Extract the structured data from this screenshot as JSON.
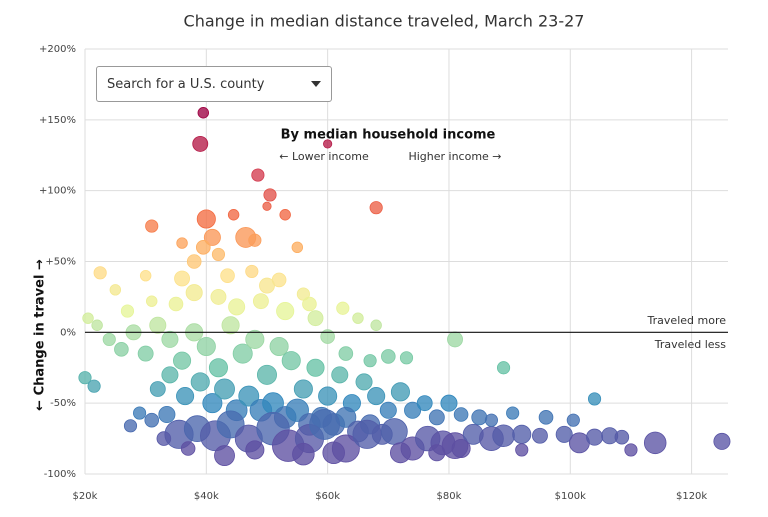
{
  "chart_data": {
    "type": "scatter",
    "title": "Change in median distance traveled, March 23-27",
    "search_placeholder": "Search for a U.S. county",
    "y_label": "← Change in travel →",
    "annotations": {
      "heading": "By median household income",
      "lower": "← Lower income",
      "higher": "Higher income →",
      "more": "Traveled more",
      "less": "Traveled less"
    },
    "xlim": [
      20000,
      126000
    ],
    "xticks": [
      {
        "value": 20000,
        "label": "$20k"
      },
      {
        "value": 40000,
        "label": "$40k"
      },
      {
        "value": 60000,
        "label": "$60k"
      },
      {
        "value": 80000,
        "label": "$80k"
      },
      {
        "value": 100000,
        "label": "$100k"
      },
      {
        "value": 120000,
        "label": "$120k"
      }
    ],
    "ylim": [
      -100,
      200
    ],
    "yticks": [
      {
        "value": -100,
        "label": "-100%"
      },
      {
        "value": -50,
        "label": "-50%"
      },
      {
        "value": 0,
        "label": "0%"
      },
      {
        "value": 50,
        "label": "+50%"
      },
      {
        "value": 100,
        "label": "+100%"
      },
      {
        "value": 150,
        "label": "+150%"
      },
      {
        "value": 200,
        "label": "+200%"
      }
    ],
    "grid": true,
    "colormap": {
      "values": [
        -80,
        -50,
        -25,
        0,
        15,
        40,
        60,
        80,
        110,
        150
      ],
      "colors": [
        "#5e4fa2",
        "#3288bd",
        "#66c2a5",
        "#abdda4",
        "#e6f598",
        "#fee08b",
        "#fdae61",
        "#f46d43",
        "#d53e4f",
        "#9e0142"
      ]
    },
    "x": [
      39500,
      39000,
      48500,
      50500,
      60000,
      68000,
      40000,
      46500,
      41000,
      39500,
      36000,
      31000,
      44500,
      50000,
      53000,
      38000,
      42000,
      48000,
      22500,
      25000,
      30000,
      36000,
      43500,
      47500,
      52000,
      55000,
      50000,
      56000,
      57000,
      62500,
      65000,
      68000,
      20500,
      22000,
      27000,
      31000,
      35000,
      38000,
      42000,
      45000,
      49000,
      53000,
      58000,
      60000,
      63000,
      67000,
      70000,
      73000,
      81000,
      89000,
      104000,
      20000,
      21500,
      24000,
      26000,
      28000,
      30000,
      32000,
      34000,
      36000,
      38000,
      40000,
      42000,
      44000,
      46000,
      48000,
      50000,
      52000,
      54000,
      56000,
      58000,
      60000,
      62000,
      64000,
      66000,
      68000,
      70000,
      72000,
      74000,
      76000,
      78000,
      80000,
      82000,
      85000,
      32000,
      34000,
      36500,
      39000,
      41000,
      43000,
      45000,
      47000,
      49000,
      51000,
      53000,
      55000,
      57000,
      59000,
      61000,
      63000,
      65000,
      67000,
      69000,
      27500,
      29000,
      31000,
      33500,
      35500,
      38500,
      41500,
      44000,
      47000,
      51000,
      53500,
      57000,
      59500,
      63000,
      66500,
      71000,
      74000,
      76500,
      79000,
      81000,
      84000,
      87000,
      89000,
      92000,
      95000,
      99000,
      101500,
      104000,
      106500,
      108500,
      114000,
      125000,
      87000,
      90500,
      96000,
      100500,
      43000,
      48000,
      56000,
      61000,
      72000,
      78000,
      82000,
      92000,
      110000,
      37000,
      33000
    ],
    "values": [
      155,
      133,
      111,
      97,
      133,
      88,
      80,
      67,
      67,
      60,
      63,
      75,
      83,
      89,
      83,
      50,
      55,
      65,
      42,
      30,
      40,
      38,
      40,
      43,
      37,
      60,
      33,
      27,
      20,
      17,
      10,
      5,
      10,
      5,
      15,
      22,
      20,
      28,
      25,
      18,
      22,
      15,
      10,
      -3,
      -15,
      -20,
      -17,
      -18,
      -5,
      -25,
      -47,
      -32,
      -38,
      -5,
      -12,
      0,
      -15,
      5,
      -5,
      -20,
      0,
      -10,
      -25,
      5,
      -15,
      -5,
      -30,
      -10,
      -20,
      -40,
      -25,
      -45,
      -30,
      -50,
      -35,
      -45,
      -55,
      -42,
      -55,
      -50,
      -60,
      -50,
      -58,
      -60,
      -40,
      -30,
      -45,
      -35,
      -50,
      -40,
      -55,
      -45,
      -55,
      -50,
      -60,
      -55,
      -65,
      -60,
      -65,
      -60,
      -70,
      -65,
      -72,
      -66,
      -57,
      -62,
      -58,
      -72,
      -68,
      -73,
      -65,
      -75,
      -68,
      -80,
      -75,
      -65,
      -82,
      -72,
      -70,
      -82,
      -75,
      -78,
      -80,
      -72,
      -75,
      -73,
      -72,
      -73,
      -72,
      -78,
      -74,
      -73,
      -74,
      -78,
      -77,
      -62,
      -57,
      -60,
      -62,
      -87,
      -83,
      -86,
      -85,
      -85,
      -85,
      -82,
      -83,
      -83,
      -82,
      -75
    ],
    "sizes": [
      2,
      5,
      3,
      3,
      1,
      3,
      8,
      10,
      6,
      4,
      2,
      3,
      2,
      1,
      2,
      4,
      3,
      3,
      3,
      2,
      2,
      5,
      4,
      3,
      4,
      2,
      5,
      3,
      4,
      3,
      2,
      2,
      2,
      2,
      3,
      2,
      4,
      6,
      5,
      6,
      5,
      7,
      5,
      4,
      4,
      3,
      4,
      3,
      5,
      3,
      3,
      3,
      3,
      3,
      4,
      5,
      5,
      6,
      6,
      7,
      7,
      8,
      8,
      7,
      9,
      8,
      9,
      8,
      8,
      8,
      7,
      8,
      6,
      7,
      6,
      7,
      6,
      8,
      6,
      5,
      5,
      6,
      4,
      5,
      5,
      6,
      7,
      8,
      9,
      10,
      11,
      10,
      12,
      11,
      12,
      13,
      12,
      10,
      12,
      10,
      11,
      9,
      10,
      3,
      3,
      4,
      6,
      22,
      18,
      25,
      20,
      20,
      30,
      28,
      22,
      25,
      20,
      22,
      18,
      14,
      16,
      15,
      18,
      10,
      15,
      12,
      8,
      5,
      6,
      10,
      6,
      6,
      4,
      12,
      6,
      3,
      3,
      4,
      3,
      10,
      8,
      12,
      12,
      10,
      6,
      8,
      3,
      3,
      4,
      4
    ]
  }
}
